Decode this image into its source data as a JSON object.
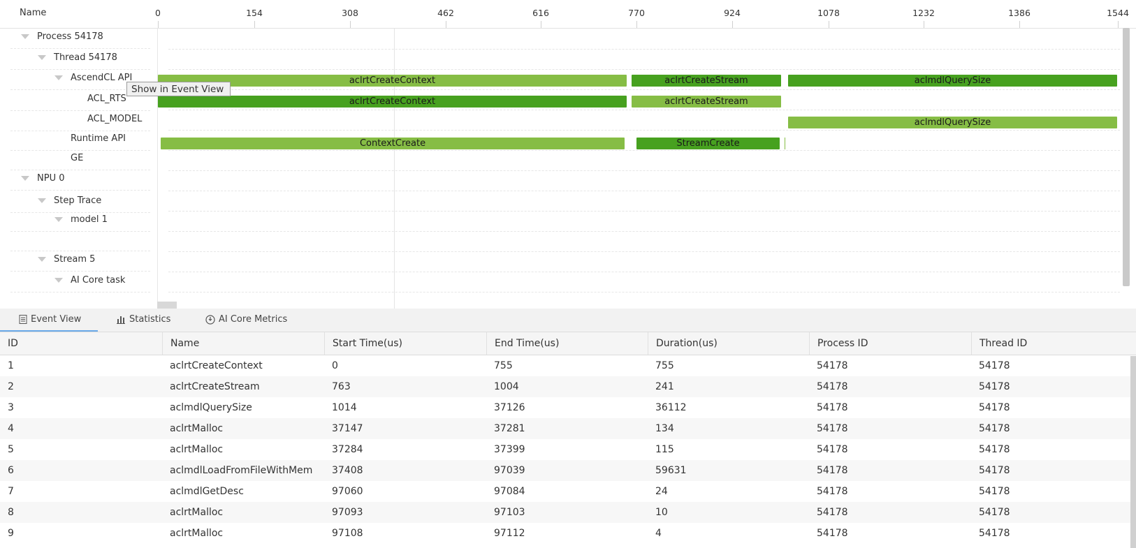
{
  "timeline": {
    "name_header": "Name",
    "ticks": [
      "0",
      "154",
      "308",
      "462",
      "616",
      "770",
      "924",
      "1078",
      "1232",
      "1386",
      "1544"
    ],
    "tree": [
      {
        "label": "Process 54178",
        "collapsible": true
      },
      {
        "label": "Thread 54178",
        "collapsible": true
      },
      {
        "label": "AscendCL API",
        "collapsible": true
      },
      {
        "label": "ACL_RTS",
        "collapsible": false
      },
      {
        "label": "ACL_MODEL",
        "collapsible": false
      },
      {
        "label": "Runtime API",
        "collapsible": false
      },
      {
        "label": "GE",
        "collapsible": false
      },
      {
        "label": "NPU 0",
        "collapsible": true
      },
      {
        "label": "Step Trace",
        "collapsible": true
      },
      {
        "label": "model 1",
        "collapsible": true
      },
      {
        "label": "",
        "collapsible": false
      },
      {
        "label": "Stream 5",
        "collapsible": true
      },
      {
        "label": "AI Core task",
        "collapsible": true
      }
    ],
    "bars": {
      "ascendcl_1": "aclrtCreateContext",
      "ascendcl_2": "aclrtCreateStream",
      "ascendcl_3": "aclmdlQuerySize",
      "acl_rts_1": "aclrtCreateContext",
      "acl_rts_2": "aclrtCreateStream",
      "acl_model_1": "aclmdlQuerySize",
      "runtime_1": "ContextCreate",
      "runtime_2": "StreamCreate"
    },
    "tooltip": "Show in Event View"
  },
  "tabs": [
    {
      "label": "Event View",
      "icon": "document-icon",
      "active": true
    },
    {
      "label": "Statistics",
      "icon": "bar-chart-icon",
      "active": false
    },
    {
      "label": "AI Core Metrics",
      "icon": "gauge-icon",
      "active": false
    }
  ],
  "table": {
    "columns": [
      "ID",
      "Name",
      "Start Time(us)",
      "End Time(us)",
      "Duration(us)",
      "Process ID",
      "Thread ID"
    ],
    "rows": [
      [
        "1",
        "aclrtCreateContext",
        "0",
        "755",
        "755",
        "54178",
        "54178"
      ],
      [
        "2",
        "aclrtCreateStream",
        "763",
        "1004",
        "241",
        "54178",
        "54178"
      ],
      [
        "3",
        "aclmdlQuerySize",
        "1014",
        "37126",
        "36112",
        "54178",
        "54178"
      ],
      [
        "4",
        "aclrtMalloc",
        "37147",
        "37281",
        "134",
        "54178",
        "54178"
      ],
      [
        "5",
        "aclrtMalloc",
        "37284",
        "37399",
        "115",
        "54178",
        "54178"
      ],
      [
        "6",
        "aclmdlLoadFromFileWithMem",
        "37408",
        "97039",
        "59631",
        "54178",
        "54178"
      ],
      [
        "7",
        "aclmdlGetDesc",
        "97060",
        "97084",
        "24",
        "54178",
        "54178"
      ],
      [
        "8",
        "aclrtMalloc",
        "97093",
        "97103",
        "10",
        "54178",
        "54178"
      ],
      [
        "9",
        "aclrtMalloc",
        "97108",
        "97112",
        "4",
        "54178",
        "54178"
      ]
    ]
  },
  "colors": {
    "bar_light": "#86bd45",
    "bar_dark": "#47a11f",
    "tab_active_underline": "#6aa9e9"
  }
}
